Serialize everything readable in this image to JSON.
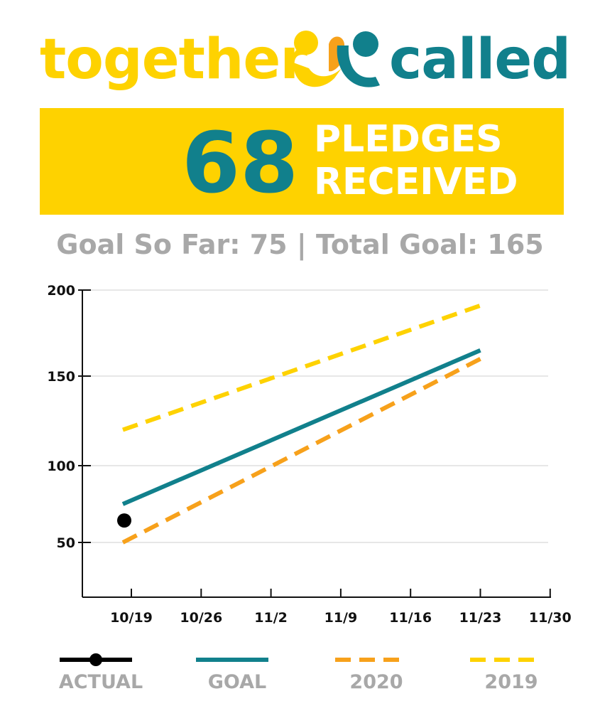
{
  "logo": {
    "word_left": "together",
    "word_right": "called",
    "icon": "together-called-people-icon"
  },
  "banner": {
    "count": "68",
    "line1": "PLEDGES",
    "line2": "RECEIVED"
  },
  "goal_summary": "Goal So Far: 75 | Total Goal: 165",
  "colors": {
    "yellow": "#fed200",
    "teal": "#11808c",
    "orange": "#f7a11b",
    "gray": "#a8a8a8",
    "black": "#000000"
  },
  "chart_data": {
    "type": "line",
    "title": "",
    "xlabel": "",
    "ylabel": "",
    "x_ticks": [
      "10/19",
      "10/26",
      "11/2",
      "11/9",
      "11/16",
      "11/23",
      "11/30"
    ],
    "y_ticks": [
      50,
      100,
      150,
      200
    ],
    "ylim": [
      20,
      200
    ],
    "grid": true,
    "legend_position": "bottom",
    "series": [
      {
        "name": "ACTUAL",
        "style": "point",
        "color": "#000000",
        "points": [
          {
            "x": "10/19",
            "y": 68
          }
        ]
      },
      {
        "name": "GOAL",
        "style": "solid",
        "color": "#11808c",
        "points": [
          {
            "x": "10/19",
            "y": 75
          },
          {
            "x": "11/23",
            "y": 165
          }
        ]
      },
      {
        "name": "2020",
        "style": "dashed",
        "color": "#f7a11b",
        "points": [
          {
            "x": "10/19",
            "y": 50
          },
          {
            "x": "11/23",
            "y": 160
          }
        ]
      },
      {
        "name": "2019",
        "style": "dashed",
        "color": "#fed200",
        "points": [
          {
            "x": "10/19",
            "y": 120
          },
          {
            "x": "11/23",
            "y": 191
          }
        ]
      }
    ]
  }
}
